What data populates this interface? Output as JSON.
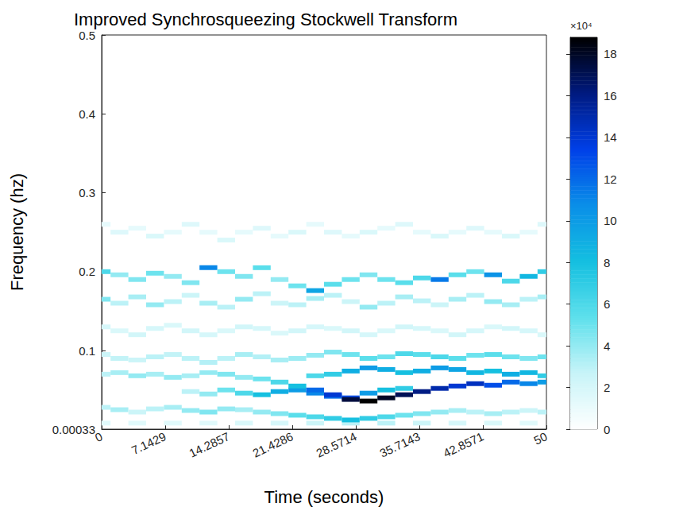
{
  "chart_data": {
    "type": "heatmap",
    "title": "Improved Synchrosqueezing Stockwell Transform",
    "x_label": "Time (seconds)",
    "y_label": "Frequency (hz)",
    "xlim": [
      0,
      50
    ],
    "xticks": [
      0,
      {
        "value": 7.142857,
        "label": "7.1429"
      },
      {
        "value": 14.285714,
        "label": "14.2857"
      },
      {
        "value": 21.428571,
        "label": "21.4286"
      },
      {
        "value": 28.571429,
        "label": "28.5714"
      },
      {
        "value": 35.714286,
        "label": "35.7143"
      },
      {
        "value": 42.857143,
        "label": "42.8571"
      },
      50
    ],
    "ylim": [
      0.00033,
      0.5
    ],
    "yticks": [
      0.00033,
      0.1,
      0.2,
      0.3,
      0.4,
      0.5
    ],
    "grid": false,
    "cell_width": 2,
    "cell_height": 0.006,
    "colorbar": {
      "range": [
        0,
        188000
      ],
      "ticks": [
        0,
        {
          "value": 20000,
          "label": "2"
        },
        {
          "value": 40000,
          "label": "4"
        },
        {
          "value": 60000,
          "label": "6"
        },
        {
          "value": 80000,
          "label": "8"
        },
        {
          "value": 100000,
          "label": "10"
        },
        {
          "value": 120000,
          "label": "12"
        },
        {
          "value": 140000,
          "label": "14"
        },
        {
          "value": 160000,
          "label": "16"
        },
        {
          "value": 180000,
          "label": "18"
        }
      ],
      "label": "×10⁴"
    },
    "cells": [
      [
        0,
        0.008,
        15000
      ],
      [
        4,
        0.008,
        15000
      ],
      [
        8,
        0.008,
        15000
      ],
      [
        12,
        0.008,
        15000
      ],
      [
        16,
        0.008,
        18000
      ],
      [
        20,
        0.008,
        20000
      ],
      [
        24,
        0.008,
        25000
      ],
      [
        28,
        0.008,
        30000
      ],
      [
        32,
        0.008,
        30000
      ],
      [
        36,
        0.008,
        25000
      ],
      [
        40,
        0.008,
        20000
      ],
      [
        44,
        0.008,
        18000
      ],
      [
        48,
        0.008,
        15000
      ],
      [
        0,
        0.26,
        12000
      ],
      [
        2,
        0.25,
        16000
      ],
      [
        4,
        0.255,
        12000
      ],
      [
        6,
        0.245,
        18000
      ],
      [
        8,
        0.25,
        12000
      ],
      [
        10,
        0.26,
        16000
      ],
      [
        12,
        0.25,
        12000
      ],
      [
        14,
        0.24,
        18000
      ],
      [
        16,
        0.25,
        12000
      ],
      [
        18,
        0.255,
        16000
      ],
      [
        20,
        0.245,
        12000
      ],
      [
        22,
        0.25,
        18000
      ],
      [
        24,
        0.26,
        12000
      ],
      [
        26,
        0.25,
        16000
      ],
      [
        28,
        0.245,
        12000
      ],
      [
        30,
        0.25,
        18000
      ],
      [
        32,
        0.255,
        12000
      ],
      [
        34,
        0.26,
        16000
      ],
      [
        36,
        0.25,
        12000
      ],
      [
        38,
        0.245,
        18000
      ],
      [
        40,
        0.25,
        12000
      ],
      [
        42,
        0.255,
        16000
      ],
      [
        44,
        0.25,
        12000
      ],
      [
        46,
        0.245,
        18000
      ],
      [
        48,
        0.25,
        12000
      ],
      [
        50,
        0.26,
        16000
      ],
      [
        0,
        0.13,
        20000
      ],
      [
        2,
        0.125,
        18000
      ],
      [
        4,
        0.12,
        22000
      ],
      [
        6,
        0.128,
        20000
      ],
      [
        8,
        0.132,
        18000
      ],
      [
        10,
        0.125,
        22000
      ],
      [
        12,
        0.12,
        20000
      ],
      [
        14,
        0.125,
        18000
      ],
      [
        16,
        0.13,
        22000
      ],
      [
        18,
        0.128,
        20000
      ],
      [
        20,
        0.122,
        18000
      ],
      [
        22,
        0.125,
        22000
      ],
      [
        24,
        0.13,
        20000
      ],
      [
        26,
        0.128,
        18000
      ],
      [
        28,
        0.125,
        22000
      ],
      [
        30,
        0.12,
        20000
      ],
      [
        32,
        0.125,
        18000
      ],
      [
        34,
        0.13,
        22000
      ],
      [
        36,
        0.128,
        20000
      ],
      [
        38,
        0.125,
        18000
      ],
      [
        40,
        0.12,
        22000
      ],
      [
        42,
        0.125,
        20000
      ],
      [
        44,
        0.13,
        18000
      ],
      [
        46,
        0.128,
        22000
      ],
      [
        48,
        0.125,
        20000
      ],
      [
        50,
        0.12,
        18000
      ],
      [
        0,
        0.165,
        45000
      ],
      [
        2,
        0.16,
        30000
      ],
      [
        4,
        0.168,
        35000
      ],
      [
        6,
        0.158,
        40000
      ],
      [
        8,
        0.162,
        30000
      ],
      [
        10,
        0.17,
        25000
      ],
      [
        12,
        0.16,
        35000
      ],
      [
        14,
        0.155,
        30000
      ],
      [
        16,
        0.165,
        40000
      ],
      [
        18,
        0.172,
        30000
      ],
      [
        20,
        0.16,
        25000
      ],
      [
        22,
        0.158,
        30000
      ],
      [
        24,
        0.166,
        35000
      ],
      [
        26,
        0.17,
        30000
      ],
      [
        28,
        0.162,
        25000
      ],
      [
        30,
        0.155,
        40000
      ],
      [
        32,
        0.16,
        30000
      ],
      [
        34,
        0.168,
        35000
      ],
      [
        36,
        0.163,
        30000
      ],
      [
        38,
        0.158,
        25000
      ],
      [
        40,
        0.165,
        35000
      ],
      [
        42,
        0.17,
        30000
      ],
      [
        44,
        0.162,
        40000
      ],
      [
        46,
        0.158,
        35000
      ],
      [
        48,
        0.165,
        30000
      ],
      [
        50,
        0.168,
        35000
      ],
      [
        0,
        0.2,
        60000
      ],
      [
        2,
        0.196,
        40000
      ],
      [
        4,
        0.19,
        45000
      ],
      [
        6,
        0.198,
        50000
      ],
      [
        8,
        0.194,
        40000
      ],
      [
        10,
        0.186,
        45000
      ],
      [
        12,
        0.205,
        110000
      ],
      [
        14,
        0.2,
        50000
      ],
      [
        16,
        0.194,
        45000
      ],
      [
        18,
        0.205,
        55000
      ],
      [
        20,
        0.19,
        40000
      ],
      [
        22,
        0.182,
        50000
      ],
      [
        24,
        0.176,
        95000
      ],
      [
        26,
        0.184,
        55000
      ],
      [
        28,
        0.19,
        50000
      ],
      [
        30,
        0.196,
        45000
      ],
      [
        32,
        0.19,
        50000
      ],
      [
        34,
        0.186,
        55000
      ],
      [
        36,
        0.192,
        60000
      ],
      [
        38,
        0.19,
        115000
      ],
      [
        40,
        0.196,
        55000
      ],
      [
        42,
        0.2,
        50000
      ],
      [
        44,
        0.196,
        105000
      ],
      [
        46,
        0.188,
        60000
      ],
      [
        48,
        0.194,
        85000
      ],
      [
        50,
        0.2,
        70000
      ],
      [
        0,
        0.095,
        25000
      ],
      [
        2,
        0.09,
        28000
      ],
      [
        4,
        0.088,
        25000
      ],
      [
        6,
        0.092,
        30000
      ],
      [
        8,
        0.095,
        28000
      ],
      [
        10,
        0.09,
        30000
      ],
      [
        12,
        0.085,
        32000
      ],
      [
        14,
        0.09,
        30000
      ],
      [
        16,
        0.095,
        35000
      ],
      [
        18,
        0.092,
        32000
      ],
      [
        20,
        0.088,
        35000
      ],
      [
        22,
        0.09,
        38000
      ],
      [
        24,
        0.094,
        40000
      ],
      [
        26,
        0.098,
        45000
      ],
      [
        28,
        0.095,
        50000
      ],
      [
        30,
        0.09,
        55000
      ],
      [
        32,
        0.092,
        50000
      ],
      [
        34,
        0.096,
        60000
      ],
      [
        36,
        0.095,
        55000
      ],
      [
        38,
        0.092,
        60000
      ],
      [
        40,
        0.09,
        55000
      ],
      [
        42,
        0.094,
        50000
      ],
      [
        44,
        0.095,
        55000
      ],
      [
        46,
        0.092,
        50000
      ],
      [
        48,
        0.09,
        45000
      ],
      [
        50,
        0.092,
        50000
      ],
      [
        0,
        0.028,
        30000
      ],
      [
        2,
        0.025,
        35000
      ],
      [
        4,
        0.022,
        25000
      ],
      [
        6,
        0.026,
        30000
      ],
      [
        8,
        0.028,
        35000
      ],
      [
        10,
        0.024,
        40000
      ],
      [
        12,
        0.022,
        45000
      ],
      [
        14,
        0.026,
        40000
      ],
      [
        16,
        0.025,
        35000
      ],
      [
        18,
        0.022,
        40000
      ],
      [
        20,
        0.02,
        45000
      ],
      [
        22,
        0.018,
        55000
      ],
      [
        24,
        0.016,
        60000
      ],
      [
        26,
        0.014,
        70000
      ],
      [
        28,
        0.012,
        80000
      ],
      [
        30,
        0.014,
        70000
      ],
      [
        32,
        0.016,
        60000
      ],
      [
        34,
        0.018,
        50000
      ],
      [
        36,
        0.02,
        45000
      ],
      [
        38,
        0.022,
        40000
      ],
      [
        40,
        0.024,
        35000
      ],
      [
        42,
        0.022,
        30000
      ],
      [
        44,
        0.02,
        35000
      ],
      [
        46,
        0.022,
        30000
      ],
      [
        48,
        0.024,
        25000
      ],
      [
        50,
        0.022,
        30000
      ],
      [
        10,
        0.048,
        30000
      ],
      [
        12,
        0.045,
        40000
      ],
      [
        14,
        0.05,
        50000
      ],
      [
        16,
        0.046,
        60000
      ],
      [
        18,
        0.044,
        80000
      ],
      [
        20,
        0.048,
        90000
      ],
      [
        22,
        0.05,
        100000
      ],
      [
        24,
        0.046,
        110000
      ],
      [
        26,
        0.042,
        120000
      ],
      [
        28,
        0.04,
        130000
      ],
      [
        30,
        0.046,
        100000
      ],
      [
        32,
        0.05,
        80000
      ],
      [
        34,
        0.052,
        70000
      ],
      [
        24,
        0.068,
        60000
      ],
      [
        26,
        0.07,
        70000
      ],
      [
        28,
        0.074,
        90000
      ],
      [
        30,
        0.078,
        100000
      ],
      [
        32,
        0.076,
        90000
      ],
      [
        34,
        0.072,
        80000
      ],
      [
        36,
        0.074,
        90000
      ],
      [
        38,
        0.078,
        100000
      ],
      [
        40,
        0.076,
        95000
      ],
      [
        42,
        0.072,
        85000
      ],
      [
        44,
        0.074,
        80000
      ],
      [
        46,
        0.07,
        90000
      ],
      [
        48,
        0.072,
        85000
      ],
      [
        50,
        0.068,
        70000
      ],
      [
        0,
        0.07,
        30000
      ],
      [
        2,
        0.072,
        35000
      ],
      [
        4,
        0.068,
        40000
      ],
      [
        6,
        0.07,
        35000
      ],
      [
        8,
        0.066,
        40000
      ],
      [
        10,
        0.068,
        35000
      ],
      [
        12,
        0.072,
        40000
      ],
      [
        14,
        0.07,
        45000
      ],
      [
        16,
        0.066,
        40000
      ],
      [
        18,
        0.064,
        50000
      ],
      [
        20,
        0.06,
        60000
      ],
      [
        22,
        0.055,
        80000
      ],
      [
        24,
        0.05,
        120000
      ],
      [
        26,
        0.044,
        140000
      ],
      [
        28,
        0.038,
        175000
      ],
      [
        30,
        0.036,
        188000
      ],
      [
        32,
        0.04,
        180000
      ],
      [
        34,
        0.044,
        170000
      ],
      [
        36,
        0.048,
        160000
      ],
      [
        38,
        0.052,
        150000
      ],
      [
        40,
        0.055,
        140000
      ],
      [
        42,
        0.058,
        145000
      ],
      [
        44,
        0.056,
        130000
      ],
      [
        46,
        0.06,
        120000
      ],
      [
        48,
        0.058,
        110000
      ],
      [
        50,
        0.06,
        100000
      ]
    ]
  }
}
